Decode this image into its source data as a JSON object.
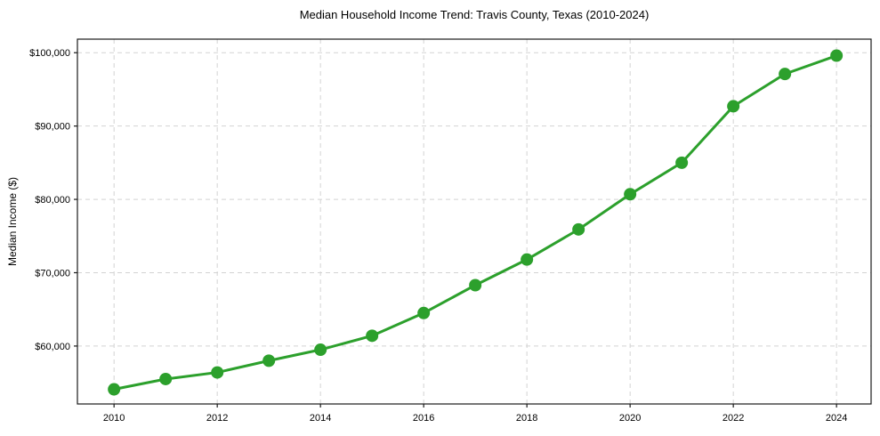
{
  "chart_data": {
    "type": "line",
    "title": "Median Household Income Trend: Travis County, Texas (2010-2024)",
    "xlabel": "",
    "ylabel": "Median Income ($)",
    "series_name": "Median household income",
    "x": [
      2010,
      2011,
      2012,
      2013,
      2014,
      2015,
      2016,
      2017,
      2018,
      2019,
      2020,
      2021,
      2022,
      2023,
      2024
    ],
    "values": [
      54100,
      55500,
      56400,
      58000,
      59500,
      61400,
      64500,
      68300,
      71800,
      75900,
      80700,
      85000,
      92700,
      97100,
      99600
    ],
    "xlim": [
      2009.29,
      2024.67
    ],
    "ylim": [
      52100,
      101850
    ],
    "x_ticks": [
      {
        "value": 2010,
        "label": "2010"
      },
      {
        "value": 2012,
        "label": "2012"
      },
      {
        "value": 2014,
        "label": "2014"
      },
      {
        "value": 2016,
        "label": "2016"
      },
      {
        "value": 2018,
        "label": "2018"
      },
      {
        "value": 2020,
        "label": "2020"
      },
      {
        "value": 2022,
        "label": "2022"
      },
      {
        "value": 2024,
        "label": "2024"
      }
    ],
    "y_ticks": [
      {
        "value": 60000,
        "label": "$60,000"
      },
      {
        "value": 70000,
        "label": "$70,000"
      },
      {
        "value": 80000,
        "label": "$80,000"
      },
      {
        "value": 90000,
        "label": "$90,000"
      },
      {
        "value": 100000,
        "label": "$100,000"
      }
    ],
    "grid": "dashed",
    "legend": "none",
    "line_color": "#2ca02c",
    "marker_color": "#2ca02c",
    "grid_color": "#d3d3d3",
    "axis_color": "#1a1a1a",
    "text_color": "#000000",
    "background_color": "#ffffff"
  }
}
